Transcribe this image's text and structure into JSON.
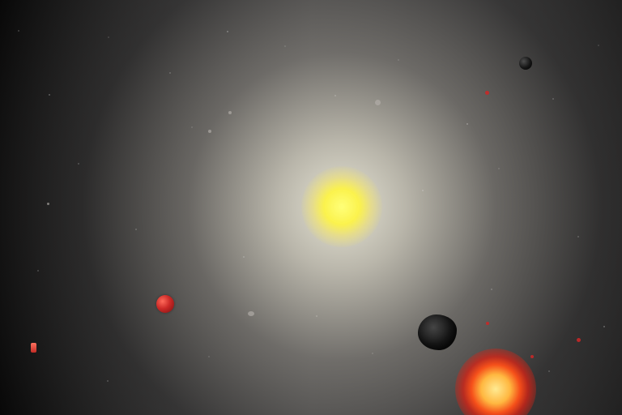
{
  "scene": {
    "colors": {
      "space_background": "#050505",
      "nebula_glow": "#d6d2c4",
      "sun_core": "#fbf24a",
      "red_star_core": "#ffb740",
      "red_planet": "#cc2a27",
      "dark_asteroid": "#181818"
    },
    "objects": [
      "yellow-star",
      "red-star",
      "red-planet",
      "dark-asteroid",
      "small-dark-moon",
      "small-red-fragment",
      "small-space-debris"
    ]
  }
}
